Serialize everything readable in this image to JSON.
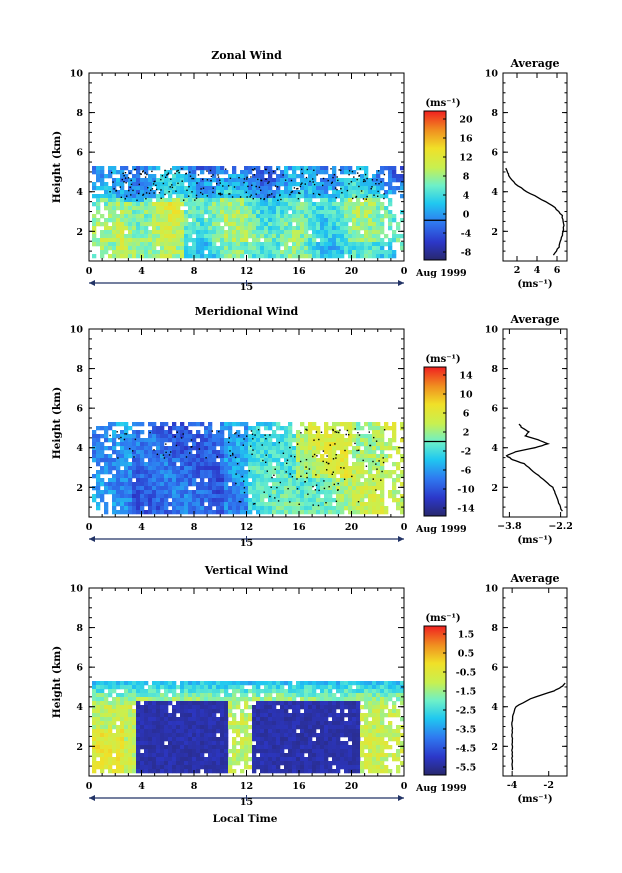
{
  "figure": {
    "xlabel": "Local Time",
    "date_label": "Aug 1999",
    "day_label": "15",
    "cbar_unit": "(ms⁻¹)",
    "avg_title": "Average",
    "avg_xunit": "(ms⁻¹)"
  },
  "chart_data": [
    {
      "type": "heatmap",
      "title": "Zonal Wind",
      "ylabel": "Height (km)",
      "xlim": [
        0,
        24
      ],
      "ylim": [
        0.5,
        10
      ],
      "xticks": [
        "0",
        "4",
        "8",
        "12",
        "16",
        "20",
        "0"
      ],
      "yticks": [
        "2",
        "4",
        "6",
        "8",
        "10"
      ],
      "data_height_range_km": [
        0.7,
        5.3
      ],
      "zero_contour": true,
      "colorbar": {
        "min": -8,
        "max": 22,
        "ticks": [
          "20",
          "16",
          "12",
          "8",
          "4",
          "0",
          "-4",
          "-8"
        ],
        "contour_level": 0
      },
      "average_profile": {
        "title": "Average",
        "xticks": [
          "2",
          "4",
          "6"
        ],
        "xlim": [
          0.6,
          7
        ],
        "ylim": [
          0.5,
          10
        ],
        "yticks": [
          "2",
          "4",
          "6",
          "8",
          "10"
        ],
        "height": [
          0.8,
          1.2,
          1.6,
          2.0,
          2.4,
          2.8,
          3.2,
          3.6,
          4.0,
          4.4,
          4.8,
          5.0,
          5.2
        ],
        "value": [
          5.6,
          6.2,
          6.4,
          6.6,
          6.7,
          6.5,
          5.8,
          4.5,
          3.0,
          1.8,
          1.2,
          1.0,
          0.9
        ]
      }
    },
    {
      "type": "heatmap",
      "title": "Meridional Wind",
      "ylabel": "Height (km)",
      "xlim": [
        0,
        24
      ],
      "ylim": [
        0.5,
        10
      ],
      "xticks": [
        "0",
        "4",
        "8",
        "12",
        "16",
        "20",
        "0"
      ],
      "yticks": [
        "2",
        "4",
        "6",
        "8",
        "10"
      ],
      "data_height_range_km": [
        0.7,
        5.3
      ],
      "zero_contour": true,
      "colorbar": {
        "min": -16,
        "max": 16,
        "ticks": [
          "14",
          "10",
          "6",
          "2",
          "-2",
          "-6",
          "-10",
          "-14"
        ],
        "contour_level": 0
      },
      "average_profile": {
        "title": "Average",
        "xticks": [
          "−3.8",
          "−2.2"
        ],
        "xlim": [
          -4.0,
          -2.0
        ],
        "ylim": [
          0.5,
          10
        ],
        "yticks": [
          "2",
          "4",
          "6",
          "8",
          "10"
        ],
        "height": [
          0.8,
          1.2,
          1.6,
          2.0,
          2.4,
          2.8,
          3.2,
          3.4,
          3.6,
          3.8,
          4.0,
          4.2,
          4.4,
          4.6,
          4.8,
          5.0,
          5.2
        ],
        "value": [
          -2.15,
          -2.25,
          -2.35,
          -2.45,
          -2.75,
          -3.05,
          -3.35,
          -3.7,
          -3.9,
          -3.6,
          -3.0,
          -2.6,
          -2.9,
          -3.3,
          -3.2,
          -3.4,
          -3.5
        ]
      }
    },
    {
      "type": "heatmap",
      "title": "Vertical Wind",
      "ylabel": "Height (km)",
      "xlim": [
        0,
        24
      ],
      "ylim": [
        0.5,
        10
      ],
      "xticks": [
        "0",
        "4",
        "8",
        "12",
        "16",
        "20",
        "0"
      ],
      "yticks": [
        "2",
        "4",
        "6",
        "8",
        "10"
      ],
      "data_height_range_km": [
        0.7,
        5.3
      ],
      "zero_contour": false,
      "colorbar": {
        "min": -6,
        "max": 2,
        "ticks": [
          "1.5",
          "0.5",
          "-0.5",
          "-1.5",
          "-2.5",
          "-3.5",
          "-4.5",
          "-5.5"
        ],
        "contour_level": null
      },
      "average_profile": {
        "title": "Average",
        "xticks": [
          "-4",
          "-2"
        ],
        "xlim": [
          -4.5,
          -1
        ],
        "ylim": [
          0.5,
          10
        ],
        "yticks": [
          "2",
          "4",
          "6",
          "8",
          "10"
        ],
        "height": [
          0.8,
          1.2,
          1.6,
          2.0,
          2.4,
          2.8,
          3.2,
          3.6,
          4.0,
          4.4,
          4.8,
          5.0,
          5.2
        ],
        "value": [
          -4.0,
          -4.0,
          -4.0,
          -4.0,
          -4.0,
          -4.0,
          -4.0,
          -3.95,
          -3.8,
          -3.0,
          -1.7,
          -1.3,
          -1.1
        ]
      }
    }
  ]
}
